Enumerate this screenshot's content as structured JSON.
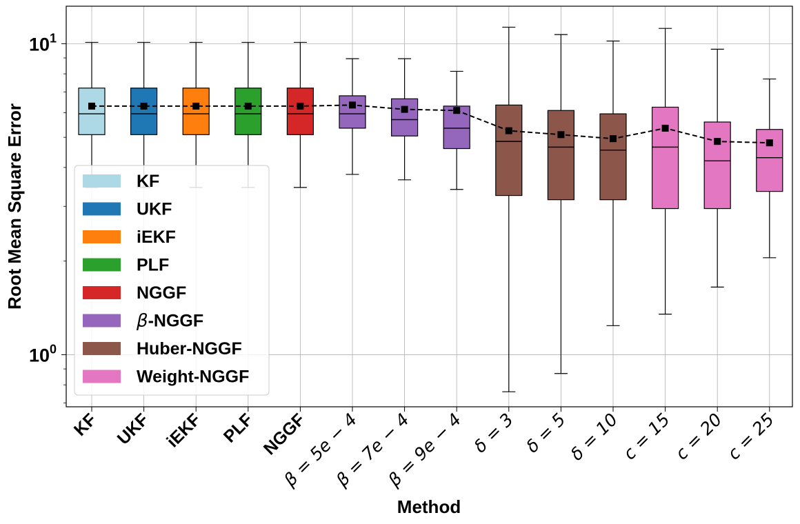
{
  "chart_data": {
    "type": "box",
    "xlabel": "Method",
    "ylabel": "Root Mean Square Error",
    "yscale": "log",
    "ylim": [
      0.68,
      13.2
    ],
    "yticks": [
      1,
      10
    ],
    "ytick_labels": [
      {
        "base": "10",
        "exp": "0"
      },
      {
        "base": "10",
        "exp": "1"
      }
    ],
    "grid": true,
    "legend_position": "center-left",
    "colors": {
      "KF": "#add8e6",
      "UKF": "#1f77b4",
      "iEKF": "#ff7f0e",
      "PLF": "#2ca02c",
      "NGGF": "#d62728",
      "beta_NGGF": "#9467bd",
      "Huber_NGGF": "#8c564b",
      "Weight_NGGF": "#e377c2"
    },
    "legend": [
      {
        "label": "KF",
        "color": "#add8e6"
      },
      {
        "label": "UKF",
        "color": "#1f77b4"
      },
      {
        "label": "iEKF",
        "color": "#ff7f0e"
      },
      {
        "label": "PLF",
        "color": "#2ca02c"
      },
      {
        "label": "NGGF",
        "color": "#d62728"
      },
      {
        "label": "-NGGF",
        "prefix": "β",
        "color": "#9467bd"
      },
      {
        "label": "Huber-NGGF",
        "color": "#8c564b"
      },
      {
        "label": "Weight-NGGF",
        "color": "#e377c2"
      }
    ],
    "mean_line": {
      "style": "dashed",
      "marker": "square",
      "color": "#000000"
    },
    "categories": [
      {
        "label": "KF",
        "math": false,
        "color": "#add8e6",
        "whislo": 3.45,
        "q1": 5.1,
        "median": 5.95,
        "q3": 7.2,
        "whishi": 10.1,
        "mean": 6.3
      },
      {
        "label": "UKF",
        "math": false,
        "color": "#1f77b4",
        "whislo": 3.45,
        "q1": 5.1,
        "median": 5.95,
        "q3": 7.2,
        "whishi": 10.1,
        "mean": 6.3
      },
      {
        "label": "iEKF",
        "math": false,
        "color": "#ff7f0e",
        "whislo": 3.45,
        "q1": 5.1,
        "median": 5.95,
        "q3": 7.2,
        "whishi": 10.1,
        "mean": 6.3
      },
      {
        "label": "PLF",
        "math": false,
        "color": "#2ca02c",
        "whislo": 3.45,
        "q1": 5.1,
        "median": 5.95,
        "q3": 7.2,
        "whishi": 10.1,
        "mean": 6.3
      },
      {
        "label": "NGGF",
        "math": false,
        "color": "#d62728",
        "whislo": 3.45,
        "q1": 5.1,
        "median": 5.95,
        "q3": 7.2,
        "whishi": 10.1,
        "mean": 6.3
      },
      {
        "label": "β = 5e − 4",
        "math": true,
        "color": "#9467bd",
        "whislo": 3.8,
        "q1": 5.35,
        "median": 5.95,
        "q3": 6.8,
        "whishi": 8.95,
        "mean": 6.35
      },
      {
        "label": "β = 7e − 4",
        "math": true,
        "color": "#9467bd",
        "whislo": 3.65,
        "q1": 5.05,
        "median": 5.7,
        "q3": 6.65,
        "whishi": 8.95,
        "mean": 6.15
      },
      {
        "label": "β = 9e − 4",
        "math": true,
        "color": "#9467bd",
        "whislo": 3.4,
        "q1": 4.6,
        "median": 5.35,
        "q3": 6.3,
        "whishi": 8.15,
        "mean": 6.1
      },
      {
        "label": "δ = 3",
        "math": true,
        "color": "#8c564b",
        "whislo": 0.76,
        "q1": 3.25,
        "median": 4.85,
        "q3": 6.35,
        "whishi": 11.3,
        "mean": 5.25
      },
      {
        "label": "δ = 5",
        "math": true,
        "color": "#8c564b",
        "whislo": 0.87,
        "q1": 3.15,
        "median": 4.65,
        "q3": 6.1,
        "whishi": 10.7,
        "mean": 5.1
      },
      {
        "label": "δ = 10",
        "math": true,
        "color": "#8c564b",
        "whislo": 1.24,
        "q1": 3.15,
        "median": 4.55,
        "q3": 5.95,
        "whishi": 10.2,
        "mean": 4.95
      },
      {
        "label": "c = 15",
        "math": true,
        "color": "#e377c2",
        "whislo": 1.35,
        "q1": 2.95,
        "median": 4.65,
        "q3": 6.25,
        "whishi": 11.2,
        "mean": 5.35
      },
      {
        "label": "c = 20",
        "math": true,
        "color": "#e377c2",
        "whislo": 1.65,
        "q1": 2.95,
        "median": 4.2,
        "q3": 5.6,
        "whishi": 9.6,
        "mean": 4.85
      },
      {
        "label": "c = 25",
        "math": true,
        "color": "#e377c2",
        "whislo": 2.05,
        "q1": 3.35,
        "median": 4.3,
        "q3": 5.3,
        "whishi": 7.7,
        "mean": 4.8
      }
    ]
  }
}
